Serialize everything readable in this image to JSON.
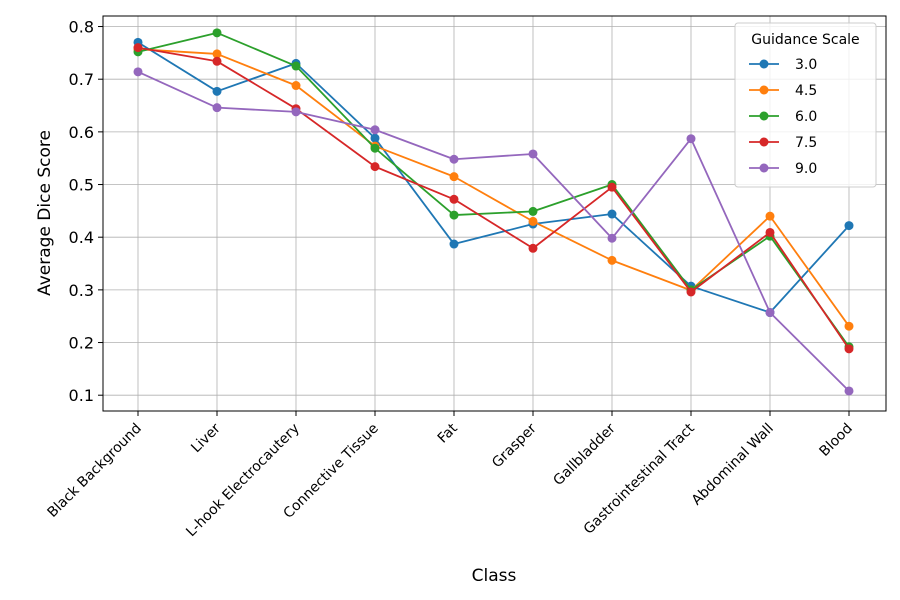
{
  "chart_data": {
    "type": "line",
    "xlabel": "Class",
    "ylabel": "Average Dice Score",
    "categories": [
      "Black Background",
      "Liver",
      "L-hook Electrocautery",
      "Connective Tissue",
      "Fat",
      "Grasper",
      "Gallbladder",
      "Gastrointestinal Tract",
      "Abdominal Wall",
      "Blood"
    ],
    "ylim": [
      0.07,
      0.82
    ],
    "yticks": [
      "0.1",
      "0.2",
      "0.3",
      "0.4",
      "0.5",
      "0.6",
      "0.7",
      "0.8"
    ],
    "grid": true,
    "legend": {
      "title": "Guidance Scale",
      "position": "top-right"
    },
    "series": [
      {
        "name": "3.0",
        "color": "#1f77b4",
        "values": [
          0.77,
          0.677,
          0.73,
          0.588,
          0.387,
          0.425,
          0.444,
          0.307,
          0.257,
          0.422
        ]
      },
      {
        "name": "4.5",
        "color": "#ff7f0e",
        "values": [
          0.757,
          0.748,
          0.688,
          0.573,
          0.515,
          0.43,
          0.356,
          0.299,
          0.44,
          0.231
        ]
      },
      {
        "name": "6.0",
        "color": "#2ca02c",
        "values": [
          0.752,
          0.788,
          0.725,
          0.569,
          0.442,
          0.449,
          0.5,
          0.3,
          0.402,
          0.192
        ]
      },
      {
        "name": "7.5",
        "color": "#d62728",
        "values": [
          0.76,
          0.734,
          0.644,
          0.534,
          0.472,
          0.379,
          0.495,
          0.296,
          0.409,
          0.188
        ]
      },
      {
        "name": "9.0",
        "color": "#9467bd",
        "values": [
          0.714,
          0.646,
          0.638,
          0.604,
          0.548,
          0.558,
          0.398,
          0.587,
          0.257,
          0.108
        ]
      }
    ]
  }
}
